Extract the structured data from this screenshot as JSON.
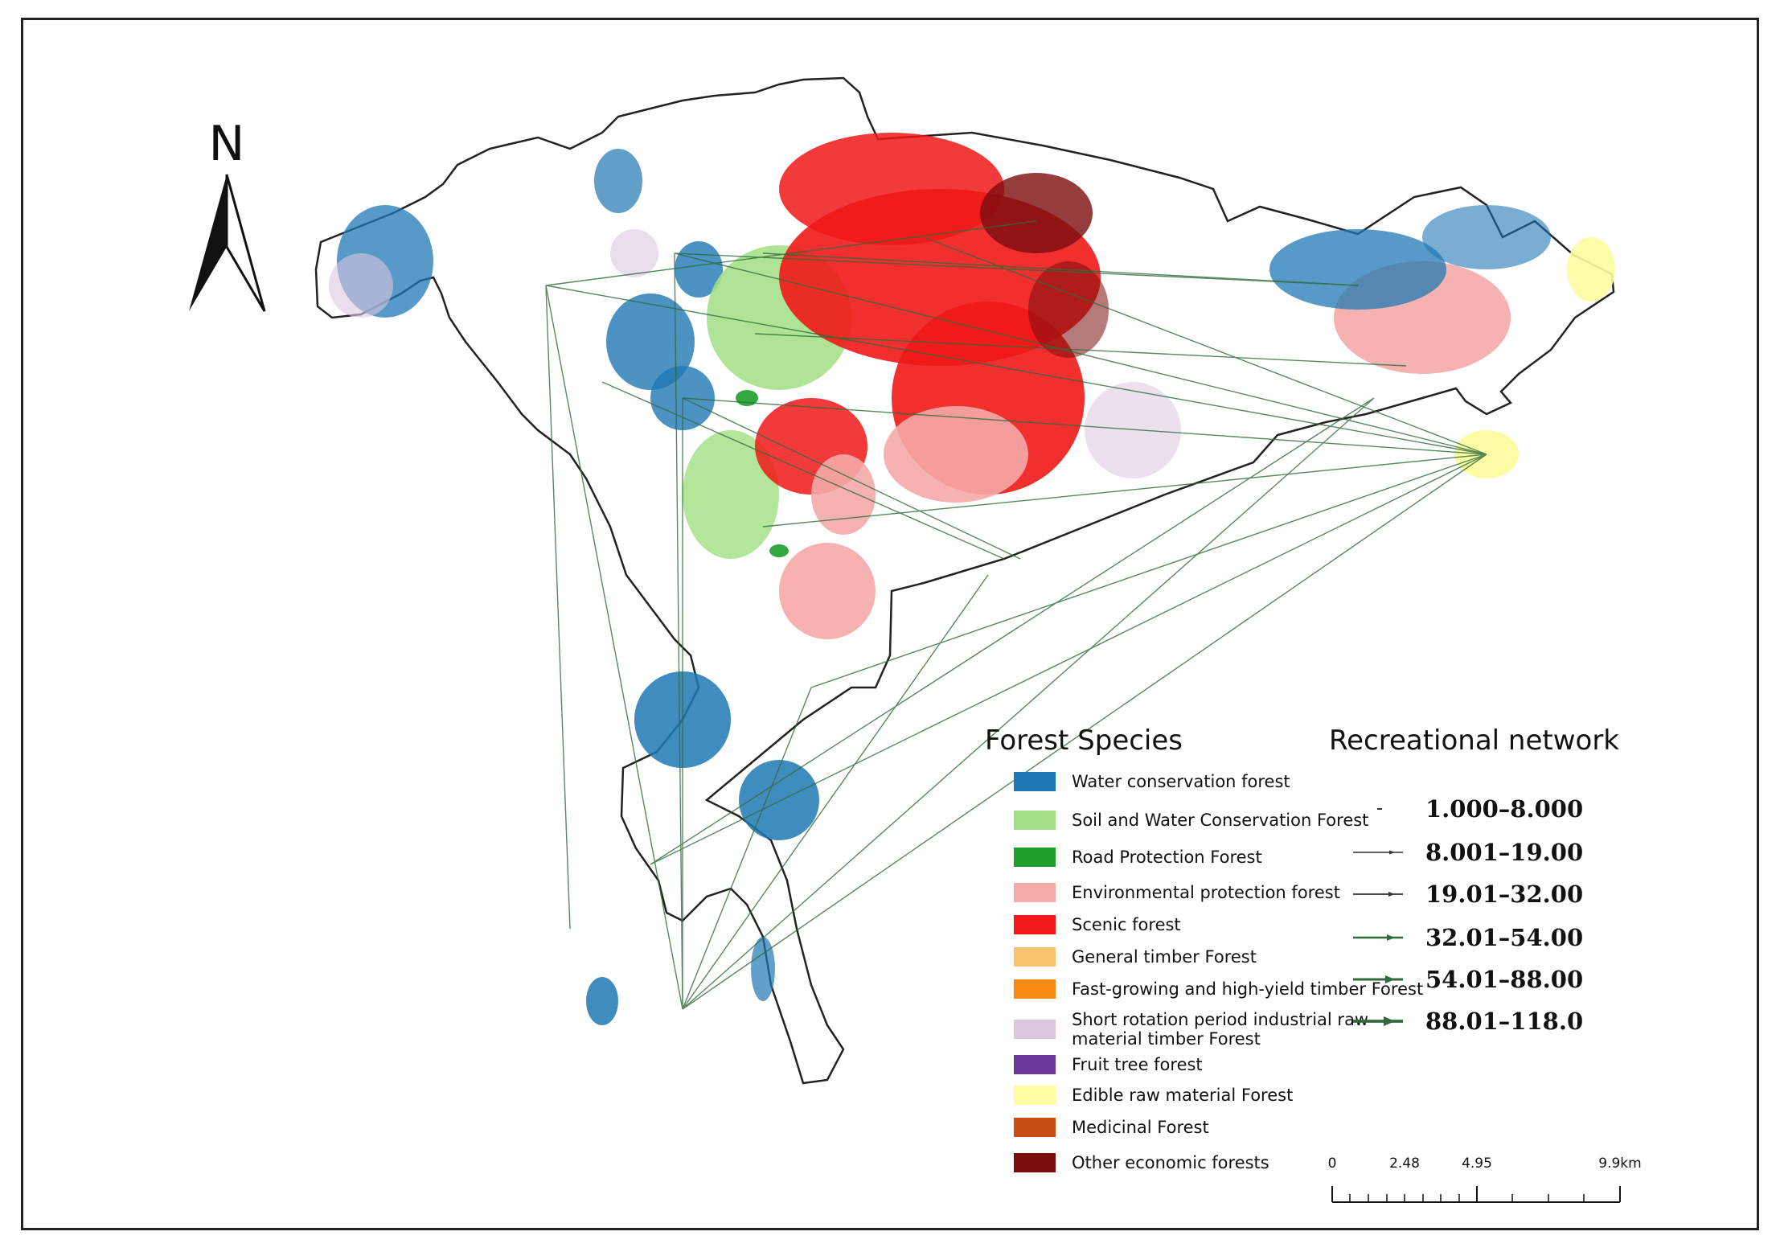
{
  "north_arrow": {
    "label": "N"
  },
  "legend_forest": {
    "title": "Forest Species",
    "items": [
      {
        "label": "Water conservation forest",
        "color": "#1f78b4"
      },
      {
        "label": "Soil and Water Conservation Forest",
        "color": "#a6e08a"
      },
      {
        "label": "Road Protection Forest",
        "color": "#1e9e2b"
      },
      {
        "label": "Environmental protection forest",
        "color": "#f4aaa8"
      },
      {
        "label": "Scenic forest",
        "color": "#f01818"
      },
      {
        "label": "General timber Forest",
        "color": "#f8c470"
      },
      {
        "label": "Fast-growing and high-yield timber Forest",
        "color": "#f88a14"
      },
      {
        "label": "Short rotation period industrial raw",
        "label2": "material timber Forest",
        "color": "#dcc6e0"
      },
      {
        "label": "Fruit tree forest",
        "color": "#6a3a9a"
      },
      {
        "label": "Edible raw material Forest",
        "color": "#fcfca0"
      },
      {
        "label": "Medicinal Forest",
        "color": "#c84e14"
      },
      {
        "label": "Other economic forests",
        "color": "#7a0c0c"
      }
    ]
  },
  "legend_network": {
    "title": "Recreational network",
    "classes": [
      {
        "label": "1.000–8.000"
      },
      {
        "label": "8.001–19.00"
      },
      {
        "label": "19.01–32.00"
      },
      {
        "label": "32.01–54.00"
      },
      {
        "label": "54.01–88.00"
      },
      {
        "label": "88.01–118.0"
      }
    ]
  },
  "scale_bar": {
    "ticks": [
      "0",
      "2.48",
      "4.95",
      "9.9km"
    ]
  },
  "colors": {
    "water": "#1f78b4",
    "soil": "#a6e08a",
    "road": "#1e9e2b",
    "env": "#f4aaa8",
    "scenic": "#f01818",
    "short_rotation": "#dcc6e0",
    "edible": "#fcfca0",
    "other": "#7a0c0c",
    "network": "#2f6b3a"
  }
}
